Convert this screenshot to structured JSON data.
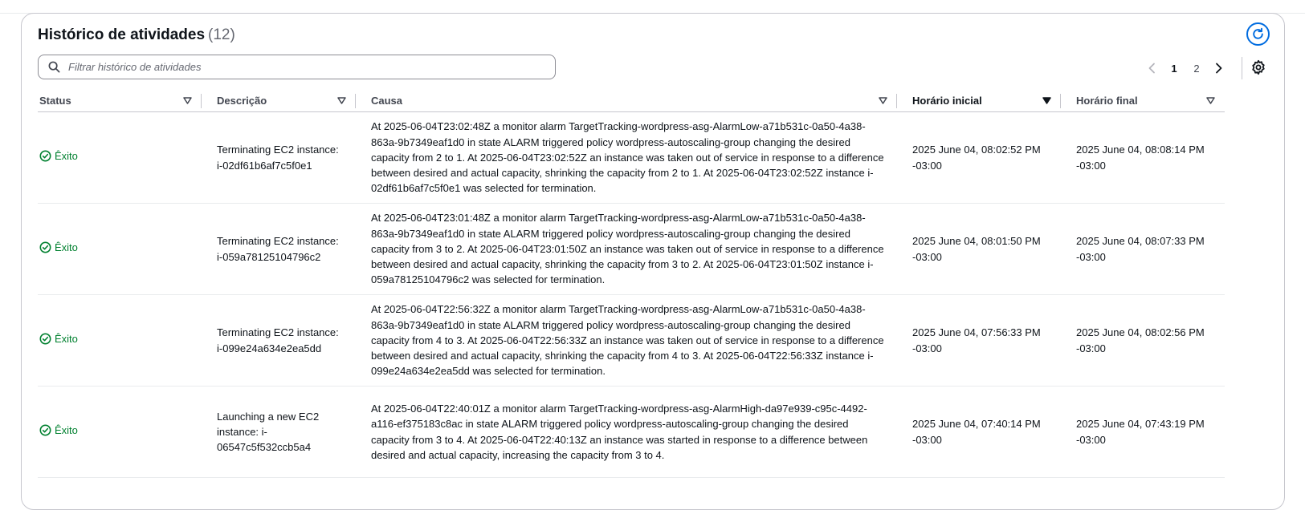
{
  "header": {
    "title": "Histórico de atividades",
    "count": "(12)"
  },
  "search": {
    "placeholder": "Filtrar histórico de atividades"
  },
  "pagination": {
    "pages": [
      "1",
      "2"
    ],
    "current": "1"
  },
  "table": {
    "columns": {
      "status": "Status",
      "description": "Descrição",
      "cause": "Causa",
      "start": "Horário inicial",
      "end": "Horário final"
    },
    "rows": [
      {
        "status": "Êxito",
        "description": "Terminating EC2 instance: i-02df61b6af7c5f0e1",
        "cause": "At 2025-06-04T23:02:48Z a monitor alarm TargetTracking-wordpress-asg-AlarmLow-a71b531c-0a50-4a38-863a-9b7349eaf1d0 in state ALARM triggered policy wordpress-autoscaling-group changing the desired capacity from 2 to 1. At 2025-06-04T23:02:52Z an instance was taken out of service in response to a difference between desired and actual capacity, shrinking the capacity from 2 to 1. At 2025-06-04T23:02:52Z instance i-02df61b6af7c5f0e1 was selected for termination.",
        "start": "2025 June 04, 08:02:52 PM -03:00",
        "end": "2025 June 04, 08:08:14 PM -03:00"
      },
      {
        "status": "Êxito",
        "description": "Terminating EC2 instance: i-059a78125104796c2",
        "cause": "At 2025-06-04T23:01:48Z a monitor alarm TargetTracking-wordpress-asg-AlarmLow-a71b531c-0a50-4a38-863a-9b7349eaf1d0 in state ALARM triggered policy wordpress-autoscaling-group changing the desired capacity from 3 to 2. At 2025-06-04T23:01:50Z an instance was taken out of service in response to a difference between desired and actual capacity, shrinking the capacity from 3 to 2. At 2025-06-04T23:01:50Z instance i-059a78125104796c2 was selected for termination.",
        "start": "2025 June 04, 08:01:50 PM -03:00",
        "end": "2025 June 04, 08:07:33 PM -03:00"
      },
      {
        "status": "Êxito",
        "description": "Terminating EC2 instance: i-099e24a634e2ea5dd",
        "cause": "At 2025-06-04T22:56:32Z a monitor alarm TargetTracking-wordpress-asg-AlarmLow-a71b531c-0a50-4a38-863a-9b7349eaf1d0 in state ALARM triggered policy wordpress-autoscaling-group changing the desired capacity from 4 to 3. At 2025-06-04T22:56:33Z an instance was taken out of service in response to a difference between desired and actual capacity, shrinking the capacity from 4 to 3. At 2025-06-04T22:56:33Z instance i-099e24a634e2ea5dd was selected for termination.",
        "start": "2025 June 04, 07:56:33 PM -03:00",
        "end": "2025 June 04, 08:02:56 PM -03:00"
      },
      {
        "status": "Êxito",
        "description": "Launching a new EC2 instance: i-06547c5f532ccb5a4",
        "cause": "At 2025-06-04T22:40:01Z a monitor alarm TargetTracking-wordpress-asg-AlarmHigh-da97e939-c95c-4492-a116-ef375183c8ac in state ALARM triggered policy wordpress-autoscaling-group changing the desired capacity from 3 to 4. At 2025-06-04T22:40:13Z an instance was started in response to a difference between desired and actual capacity, increasing the capacity from 3 to 4.",
        "start": "2025 June 04, 07:40:14 PM -03:00",
        "end": "2025 June 04, 07:43:19 PM -03:00"
      }
    ]
  },
  "colors": {
    "success": "#00802f",
    "accent": "#006ce0",
    "border": "#c6c6cd"
  },
  "icons": {
    "refresh": "refresh-icon",
    "search": "search-icon",
    "settings": "gear-icon",
    "filter": "filter-triangle-icon",
    "status": "check-circle-icon"
  }
}
